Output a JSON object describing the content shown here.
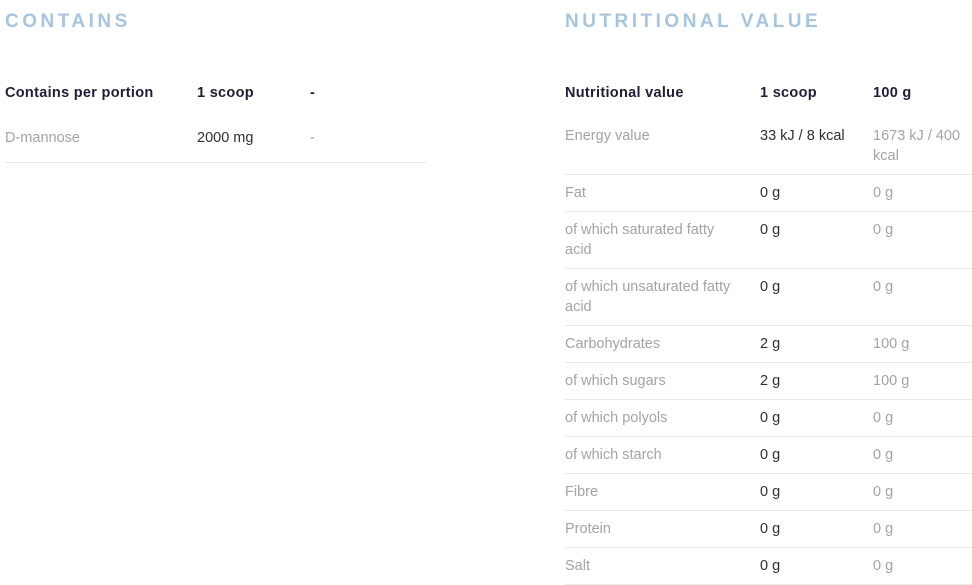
{
  "contains": {
    "title": "CONTAINS",
    "headers": [
      "Contains per portion",
      "1 scoop",
      "-"
    ],
    "rows": [
      {
        "label": "D-mannose",
        "scoop": "2000 mg",
        "alt": "-"
      }
    ]
  },
  "nutrition": {
    "title": "NUTRITIONAL VALUE",
    "headers": [
      "Nutritional value",
      "1 scoop",
      "100 g"
    ],
    "rows": [
      {
        "label": "Energy value",
        "scoop": "33 kJ / 8 kcal",
        "per100": "1673 kJ / 400 kcal"
      },
      {
        "label": "Fat",
        "scoop": "0 g",
        "per100": "0 g"
      },
      {
        "label": "of which saturated fatty acid",
        "scoop": "0 g",
        "per100": "0 g"
      },
      {
        "label": "of which unsaturated fatty acid",
        "scoop": "0 g",
        "per100": "0 g"
      },
      {
        "label": "Carbohydrates",
        "scoop": "2 g",
        "per100": "100 g"
      },
      {
        "label": "of which sugars",
        "scoop": "2 g",
        "per100": "100 g"
      },
      {
        "label": "of which polyols",
        "scoop": "0 g",
        "per100": "0 g"
      },
      {
        "label": "of which starch",
        "scoop": "0 g",
        "per100": "0 g"
      },
      {
        "label": "Fibre",
        "scoop": "0 g",
        "per100": "0 g"
      },
      {
        "label": "Protein",
        "scoop": "0 g",
        "per100": "0 g"
      },
      {
        "label": "Salt",
        "scoop": "0 g",
        "per100": "0 g"
      }
    ]
  },
  "colors": {
    "heading_blue": "#a5c5e1",
    "header_navy": "#1e1e38",
    "value_dark": "#2f2f2f",
    "text_gray": "#a3a3a8",
    "divider": "#e8e8e8"
  }
}
